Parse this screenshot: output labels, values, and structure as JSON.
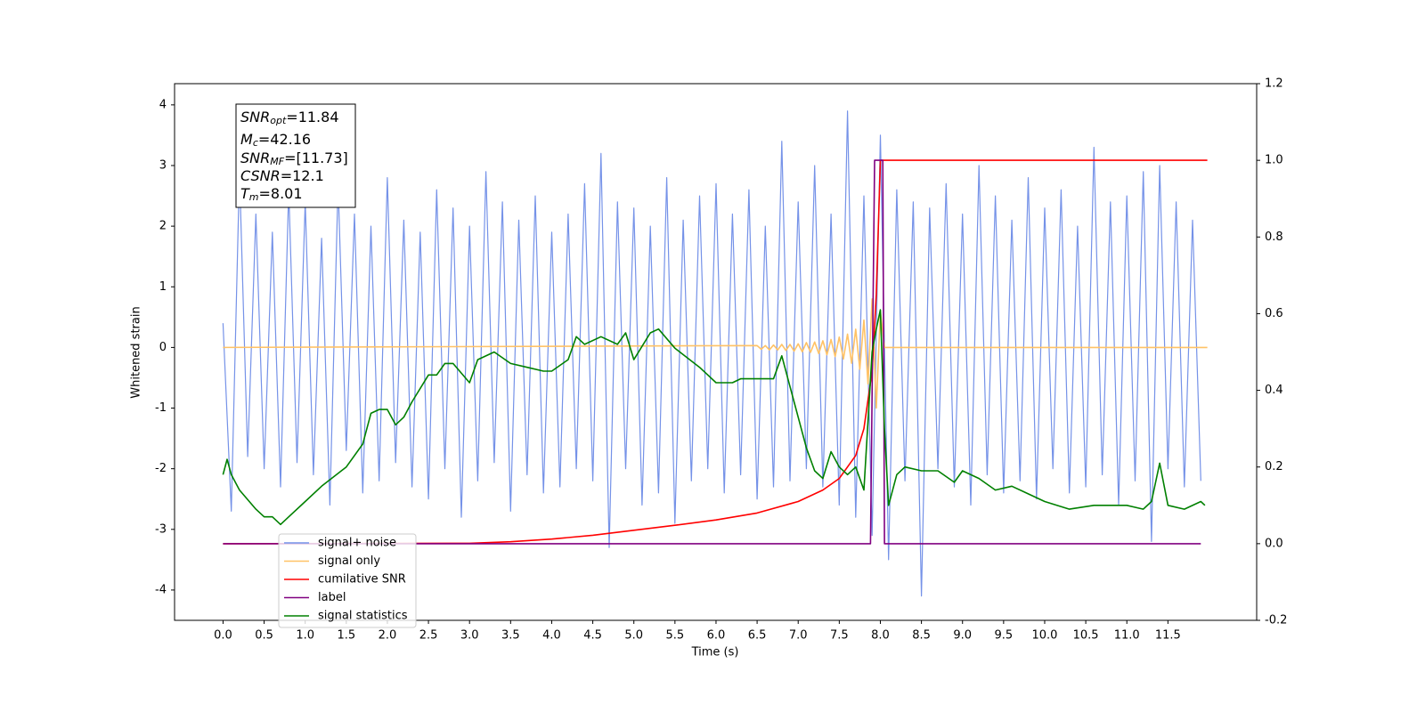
{
  "chart_data": {
    "type": "line",
    "xlabel": "Time (s)",
    "ylabel": "Whitened strain",
    "xlim": [
      -0.59,
      12.58
    ],
    "ylim": [
      -4.5,
      4.35
    ],
    "y2lim": [
      -0.2,
      1.2
    ],
    "xticks": [
      {
        "value": 0,
        "label": "0.0"
      },
      0.5,
      {
        "value": 1,
        "label": "1.0"
      },
      1.5,
      {
        "value": 2,
        "label": "2.0"
      },
      2.5,
      {
        "value": 3,
        "label": "3.0"
      },
      3.5,
      {
        "value": 4,
        "label": "4.0"
      },
      4.5,
      {
        "value": 5,
        "label": "5.0"
      },
      5.5,
      {
        "value": 6,
        "label": "6.0"
      },
      6.5,
      {
        "value": 7,
        "label": "7.0"
      },
      7.5,
      {
        "value": 8,
        "label": "8.0"
      },
      8.5,
      {
        "value": 9,
        "label": "9.0"
      },
      9.5,
      {
        "value": 10,
        "label": "10.0"
      },
      10.5,
      {
        "value": 11,
        "label": "11.0"
      },
      11.5
    ],
    "yticks": [
      -4,
      -3,
      -2,
      -1,
      0,
      1,
      2,
      3,
      4
    ],
    "y2ticks": [
      -0.2,
      {
        "value": 0,
        "label": "0.0"
      },
      0.2,
      0.4,
      0.6,
      0.8,
      {
        "value": 1,
        "label": "1.0"
      },
      1.2
    ],
    "legend": "lower left",
    "annotations": [
      {
        "symbol": "SNR",
        "sub": "opt",
        "text": "=11.84"
      },
      {
        "symbol": "M",
        "sub": "c",
        "text": "=42.16"
      },
      {
        "symbol": "SNR",
        "sub": "MF",
        "text": "=[11.73]"
      },
      {
        "symbol": "CSNR",
        "sub": null,
        "text": "=12.1"
      },
      {
        "symbol": "T",
        "sub": "m",
        "text": "=8.01"
      }
    ],
    "series": [
      {
        "name": "signal+ noise",
        "color": "#7592e8",
        "axis": "y",
        "x": [
          0.0,
          0.1,
          0.2,
          0.3,
          0.4,
          0.5,
          0.6,
          0.7,
          0.8,
          0.9,
          1.0,
          1.1,
          1.2,
          1.3,
          1.4,
          1.5,
          1.6,
          1.7,
          1.8,
          1.9,
          2.0,
          2.1,
          2.2,
          2.3,
          2.4,
          2.5,
          2.6,
          2.7,
          2.8,
          2.9,
          3.0,
          3.1,
          3.2,
          3.3,
          3.4,
          3.5,
          3.6,
          3.7,
          3.8,
          3.9,
          4.0,
          4.1,
          4.2,
          4.3,
          4.4,
          4.5,
          4.6,
          4.7,
          4.8,
          4.9,
          5.0,
          5.1,
          5.2,
          5.3,
          5.4,
          5.5,
          5.6,
          5.7,
          5.8,
          5.9,
          6.0,
          6.1,
          6.2,
          6.3,
          6.4,
          6.5,
          6.6,
          6.7,
          6.8,
          6.9,
          7.0,
          7.1,
          7.2,
          7.3,
          7.4,
          7.5,
          7.6,
          7.7,
          7.8,
          7.9,
          8.0,
          8.1,
          8.2,
          8.3,
          8.4,
          8.5,
          8.6,
          8.7,
          8.8,
          8.9,
          9.0,
          9.1,
          9.2,
          9.3,
          9.4,
          9.5,
          9.6,
          9.7,
          9.8,
          9.9,
          10.0,
          10.1,
          10.2,
          10.3,
          10.4,
          10.5,
          10.6,
          10.7,
          10.8,
          10.9,
          11.0,
          11.1,
          11.2,
          11.3,
          11.4,
          11.5,
          11.6,
          11.7,
          11.8,
          11.9
        ],
        "values": [
          0.4,
          -2.7,
          2.9,
          -1.8,
          2.2,
          -2.0,
          1.9,
          -2.3,
          2.6,
          -1.9,
          2.4,
          -2.1,
          1.8,
          -2.6,
          2.7,
          -1.7,
          2.2,
          -2.4,
          2.0,
          -2.2,
          2.8,
          -1.9,
          2.1,
          -2.3,
          1.9,
          -2.5,
          2.6,
          -2.0,
          2.3,
          -2.8,
          2.0,
          -2.2,
          2.9,
          -1.9,
          2.4,
          -2.7,
          2.1,
          -2.1,
          2.5,
          -2.4,
          1.9,
          -2.3,
          2.2,
          -2.0,
          2.7,
          -2.2,
          3.2,
          -3.3,
          2.4,
          -2.0,
          2.3,
          -2.6,
          2.0,
          -2.4,
          2.8,
          -2.9,
          2.1,
          -2.2,
          2.5,
          -2.0,
          2.7,
          -2.4,
          2.2,
          -2.1,
          2.6,
          -2.5,
          2.0,
          -2.3,
          3.4,
          -2.2,
          2.4,
          -2.0,
          3.0,
          -2.3,
          2.2,
          -2.6,
          3.9,
          -2.8,
          2.5,
          -3.1,
          3.5,
          -3.5,
          2.6,
          -2.2,
          2.4,
          -4.1,
          2.3,
          -2.0,
          2.7,
          -2.3,
          2.2,
          -2.6,
          3.0,
          -2.1,
          2.5,
          -2.4,
          2.1,
          -2.2,
          2.8,
          -2.5,
          2.3,
          -2.0,
          2.6,
          -2.4,
          2.0,
          -2.3,
          3.3,
          -2.1,
          2.4,
          -2.6,
          2.5,
          -2.2,
          2.9,
          -3.2,
          3.0,
          -2.0,
          2.4,
          -2.3,
          2.1,
          -2.2
        ]
      },
      {
        "name": "signal only",
        "color": "#ffc266",
        "axis": "y",
        "x": [
          0,
          6.5,
          6.55,
          6.6,
          6.65,
          6.7,
          6.75,
          6.8,
          6.85,
          6.9,
          6.95,
          7.0,
          7.05,
          7.1,
          7.15,
          7.2,
          7.25,
          7.3,
          7.35,
          7.4,
          7.45,
          7.5,
          7.55,
          7.6,
          7.65,
          7.7,
          7.75,
          7.8,
          7.85,
          7.9,
          7.95,
          8.0,
          8.05,
          11.98
        ],
        "values": [
          0,
          0.03,
          -0.03,
          0.03,
          -0.04,
          0.04,
          -0.04,
          0.05,
          -0.05,
          0.05,
          -0.06,
          0.06,
          -0.07,
          0.08,
          -0.08,
          0.09,
          -0.1,
          0.11,
          -0.12,
          0.13,
          -0.15,
          0.17,
          -0.19,
          0.22,
          -0.26,
          0.3,
          -0.36,
          0.45,
          -0.6,
          0.8,
          -1.0,
          0.6,
          0,
          0
        ]
      },
      {
        "name": "cumilative SNR",
        "color": "#ff0000",
        "axis": "y2",
        "x": [
          0,
          3,
          3.5,
          4,
          4.5,
          5,
          5.5,
          6,
          6.5,
          7,
          7.3,
          7.5,
          7.7,
          7.8,
          7.9,
          7.95,
          8.0,
          8.05,
          11.98
        ],
        "values": [
          0,
          0.001,
          0.005,
          0.012,
          0.022,
          0.035,
          0.048,
          0.062,
          0.08,
          0.11,
          0.14,
          0.17,
          0.23,
          0.3,
          0.45,
          0.65,
          1.0,
          1.0,
          1.0
        ]
      },
      {
        "name": "label",
        "color": "#800080",
        "axis": "y2",
        "x": [
          0,
          7.88,
          7.93,
          8.03,
          8.05,
          11.9
        ],
        "values": [
          0,
          0,
          1,
          1,
          0,
          0
        ]
      },
      {
        "name": "signal statistics",
        "color": "#008000",
        "axis": "y2",
        "x": [
          0,
          0.05,
          0.1,
          0.2,
          0.4,
          0.5,
          0.6,
          0.7,
          0.8,
          1.0,
          1.2,
          1.5,
          1.7,
          1.8,
          1.9,
          2.0,
          2.1,
          2.2,
          2.3,
          2.5,
          2.6,
          2.7,
          2.8,
          3.0,
          3.1,
          3.3,
          3.5,
          3.7,
          3.9,
          4.0,
          4.2,
          4.3,
          4.4,
          4.6,
          4.8,
          4.9,
          5.0,
          5.2,
          5.3,
          5.5,
          5.8,
          6.0,
          6.2,
          6.3,
          6.5,
          6.7,
          6.8,
          6.9,
          7.0,
          7.1,
          7.2,
          7.3,
          7.4,
          7.5,
          7.6,
          7.7,
          7.8,
          7.9,
          7.95,
          8.0,
          8.05,
          8.1,
          8.2,
          8.3,
          8.5,
          8.7,
          8.9,
          9.0,
          9.2,
          9.4,
          9.6,
          9.8,
          10.0,
          10.3,
          10.6,
          10.8,
          11.0,
          11.2,
          11.3,
          11.4,
          11.5,
          11.7,
          11.9,
          11.95
        ],
        "values": [
          0.18,
          0.22,
          0.18,
          0.14,
          0.09,
          0.07,
          0.07,
          0.05,
          0.07,
          0.11,
          0.15,
          0.2,
          0.26,
          0.34,
          0.35,
          0.35,
          0.31,
          0.33,
          0.37,
          0.44,
          0.44,
          0.47,
          0.47,
          0.42,
          0.48,
          0.5,
          0.47,
          0.46,
          0.45,
          0.45,
          0.48,
          0.54,
          0.52,
          0.54,
          0.52,
          0.55,
          0.48,
          0.55,
          0.56,
          0.51,
          0.46,
          0.42,
          0.42,
          0.43,
          0.43,
          0.43,
          0.49,
          0.41,
          0.33,
          0.25,
          0.19,
          0.17,
          0.24,
          0.2,
          0.18,
          0.2,
          0.14,
          0.5,
          0.56,
          0.61,
          0.3,
          0.1,
          0.18,
          0.2,
          0.19,
          0.19,
          0.16,
          0.19,
          0.17,
          0.14,
          0.15,
          0.13,
          0.11,
          0.09,
          0.1,
          0.1,
          0.1,
          0.09,
          0.11,
          0.21,
          0.1,
          0.09,
          0.11,
          0.1
        ]
      }
    ]
  }
}
